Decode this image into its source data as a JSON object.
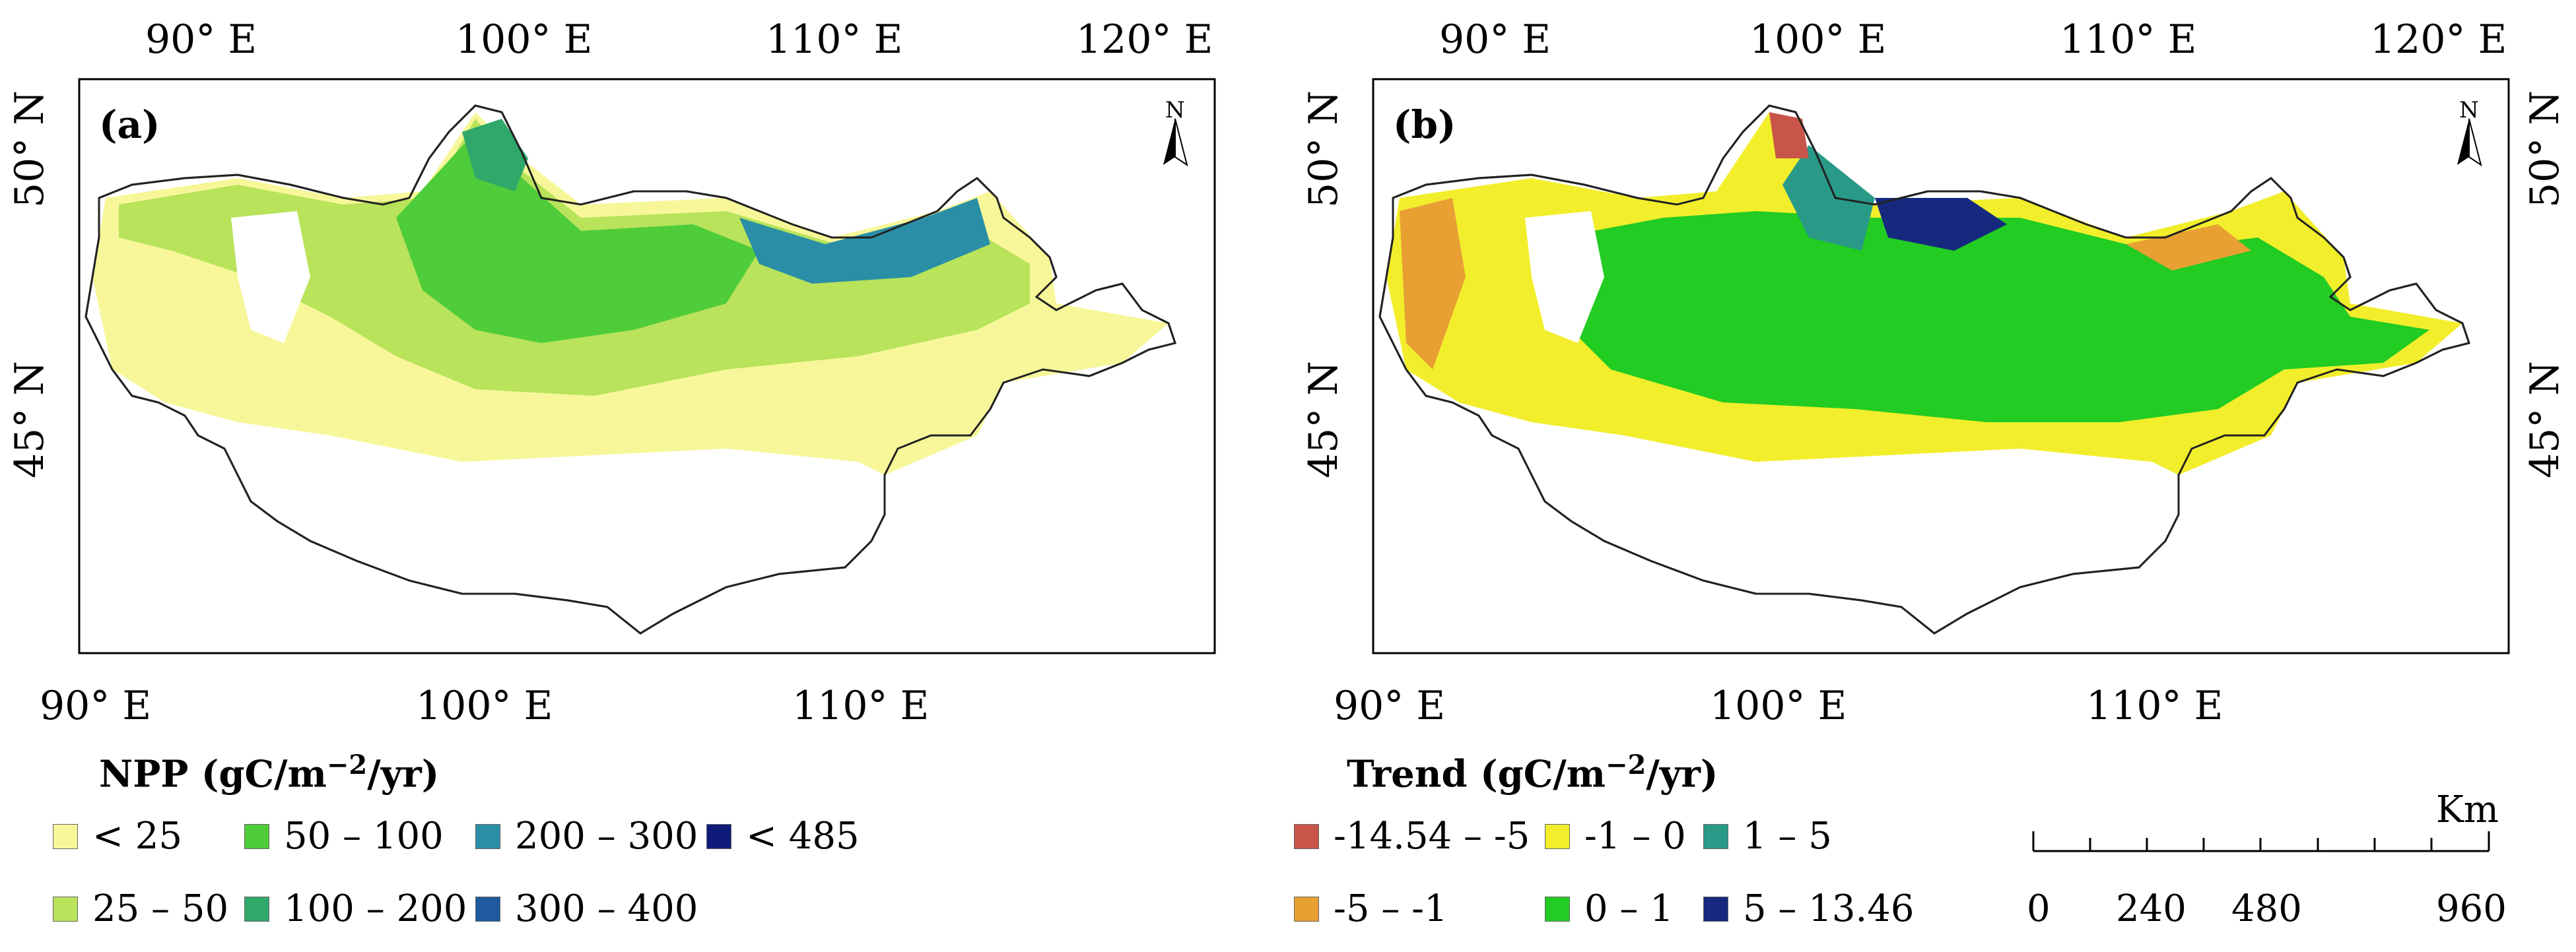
{
  "panel_a": {
    "label": "(a)",
    "top_lon_labels": [
      "90° E",
      "100° E",
      "110° E",
      "120° E"
    ],
    "bottom_lon_labels": [
      "90° E",
      "100° E",
      "110° E"
    ],
    "left_lat_labels": [
      "50° N",
      "45° N"
    ],
    "north_arrow": "N"
  },
  "panel_b": {
    "label": "(b)",
    "top_lon_labels": [
      "90° E",
      "100° E",
      "110° E",
      "120° E"
    ],
    "bottom_lon_labels": [
      "90° E",
      "100° E",
      "110° E"
    ],
    "left_lat_labels": [
      "50° N",
      "45° N"
    ],
    "right_lat_labels": [
      "50° N",
      "45° N"
    ],
    "north_arrow": "N"
  },
  "legend_npp": {
    "title_prefix": "NPP (gC/m",
    "title_sup": "−2",
    "title_suffix": "/yr)",
    "items": [
      {
        "label": "< 25",
        "color": "#f7f79a"
      },
      {
        "label": "25 – 50",
        "color": "#b8e35a"
      },
      {
        "label": "50 – 100",
        "color": "#4fcc3a"
      },
      {
        "label": "100 – 200",
        "color": "#2fa86a"
      },
      {
        "label": "200 – 300",
        "color": "#2a8fa6"
      },
      {
        "label": "300 – 400",
        "color": "#1f5aa0"
      },
      {
        "label": "< 485",
        "color": "#101a78"
      }
    ]
  },
  "legend_trend": {
    "title_prefix": "Trend (gC/m",
    "title_sup": "−2",
    "title_suffix": "/yr)",
    "items": [
      {
        "label": "-14.54 – -5",
        "color": "#c8544a"
      },
      {
        "label": "-5 – -1",
        "color": "#e8a033"
      },
      {
        "label": "-1 – 0",
        "color": "#f2ee2c"
      },
      {
        "label": "0 – 1",
        "color": "#22cc22"
      },
      {
        "label": "1 – 5",
        "color": "#2a9a88"
      },
      {
        "label": "5 – 13.46",
        "color": "#152a7e"
      }
    ]
  },
  "scale_bar": {
    "unit": "Km",
    "ticks": [
      "0",
      "240",
      "480",
      "960"
    ]
  },
  "colors": {
    "frame": "#000000",
    "outline": "#222222"
  }
}
